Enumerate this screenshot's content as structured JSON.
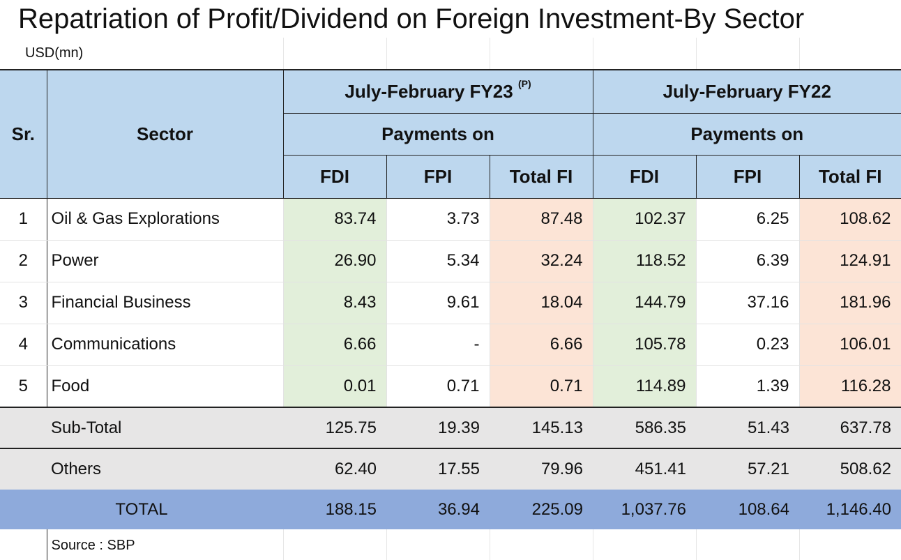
{
  "title": "Repatriation of Profit/Dividend on Foreign Investment-By Sector",
  "unit": "USD(mn)",
  "headers": {
    "sr": "Sr.",
    "sector": "Sector",
    "period1": "July-February FY23",
    "period1_note": "(P)",
    "period2": "July-February FY22",
    "payments_on": "Payments on",
    "cols": [
      "FDI",
      "FPI",
      "Total FI",
      "FDI",
      "FPI",
      "Total FI"
    ]
  },
  "rows": [
    {
      "sr": "1",
      "sector": "Oil & Gas Explorations",
      "v": [
        "83.74",
        "3.73",
        "87.48",
        "102.37",
        "6.25",
        "108.62"
      ]
    },
    {
      "sr": "2",
      "sector": "Power",
      "v": [
        "26.90",
        "5.34",
        "32.24",
        "118.52",
        "6.39",
        "124.91"
      ]
    },
    {
      "sr": "3",
      "sector": "Financial Business",
      "v": [
        "8.43",
        "9.61",
        "18.04",
        "144.79",
        "37.16",
        "181.96"
      ]
    },
    {
      "sr": "4",
      "sector": "Communications",
      "v": [
        "6.66",
        "-",
        "6.66",
        "105.78",
        "0.23",
        "106.01"
      ]
    },
    {
      "sr": "5",
      "sector": "Food",
      "v": [
        "0.01",
        "0.71",
        "0.71",
        "114.89",
        "1.39",
        "116.28"
      ]
    }
  ],
  "subtotal": {
    "label": "Sub-Total",
    "v": [
      "125.75",
      "19.39",
      "145.13",
      "586.35",
      "51.43",
      "637.78"
    ]
  },
  "others": {
    "label": "Others",
    "v": [
      "62.40",
      "17.55",
      "79.96",
      "451.41",
      "57.21",
      "508.62"
    ]
  },
  "total": {
    "label": "TOTAL",
    "v": [
      "188.15",
      "36.94",
      "225.09",
      "1,037.76",
      "108.64",
      "1,146.40"
    ]
  },
  "source": "Source : SBP",
  "colors": {
    "header": "#bdd7ee",
    "fdi": "#e2efda",
    "total_fi": "#fce4d6",
    "subtotal": "#e7e6e6",
    "grand_total": "#8eaadb"
  }
}
